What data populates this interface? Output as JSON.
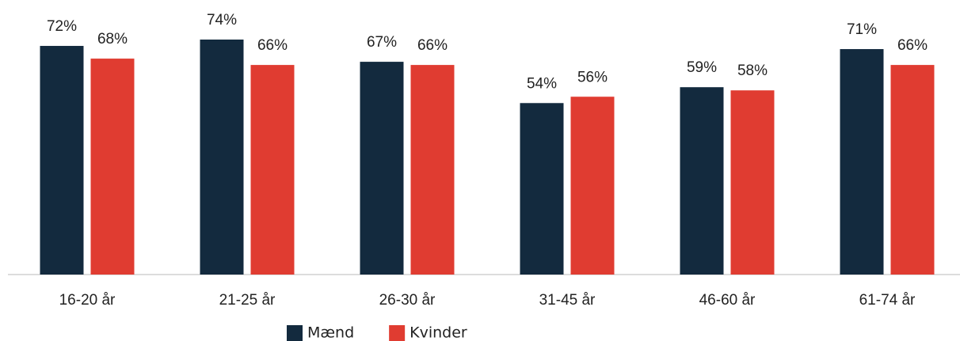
{
  "chart_data": {
    "type": "bar",
    "categories": [
      "16-20 år",
      "21-25 år",
      "26-30 år",
      "31-45 år",
      "46-60 år",
      "61-74 år"
    ],
    "series": [
      {
        "name": "Mænd",
        "color": "#132a3e",
        "values": [
          72,
          74,
          67,
          54,
          59,
          71
        ],
        "value_labels": [
          "72%",
          "74%",
          "67%",
          "54%",
          "59%",
          "71%"
        ]
      },
      {
        "name": "Kvinder",
        "color": "#e03c31",
        "values": [
          68,
          66,
          66,
          56,
          58,
          66
        ],
        "value_labels": [
          "68%",
          "66%",
          "66%",
          "56%",
          "58%",
          "66%"
        ]
      }
    ],
    "legend": "bottom"
  }
}
